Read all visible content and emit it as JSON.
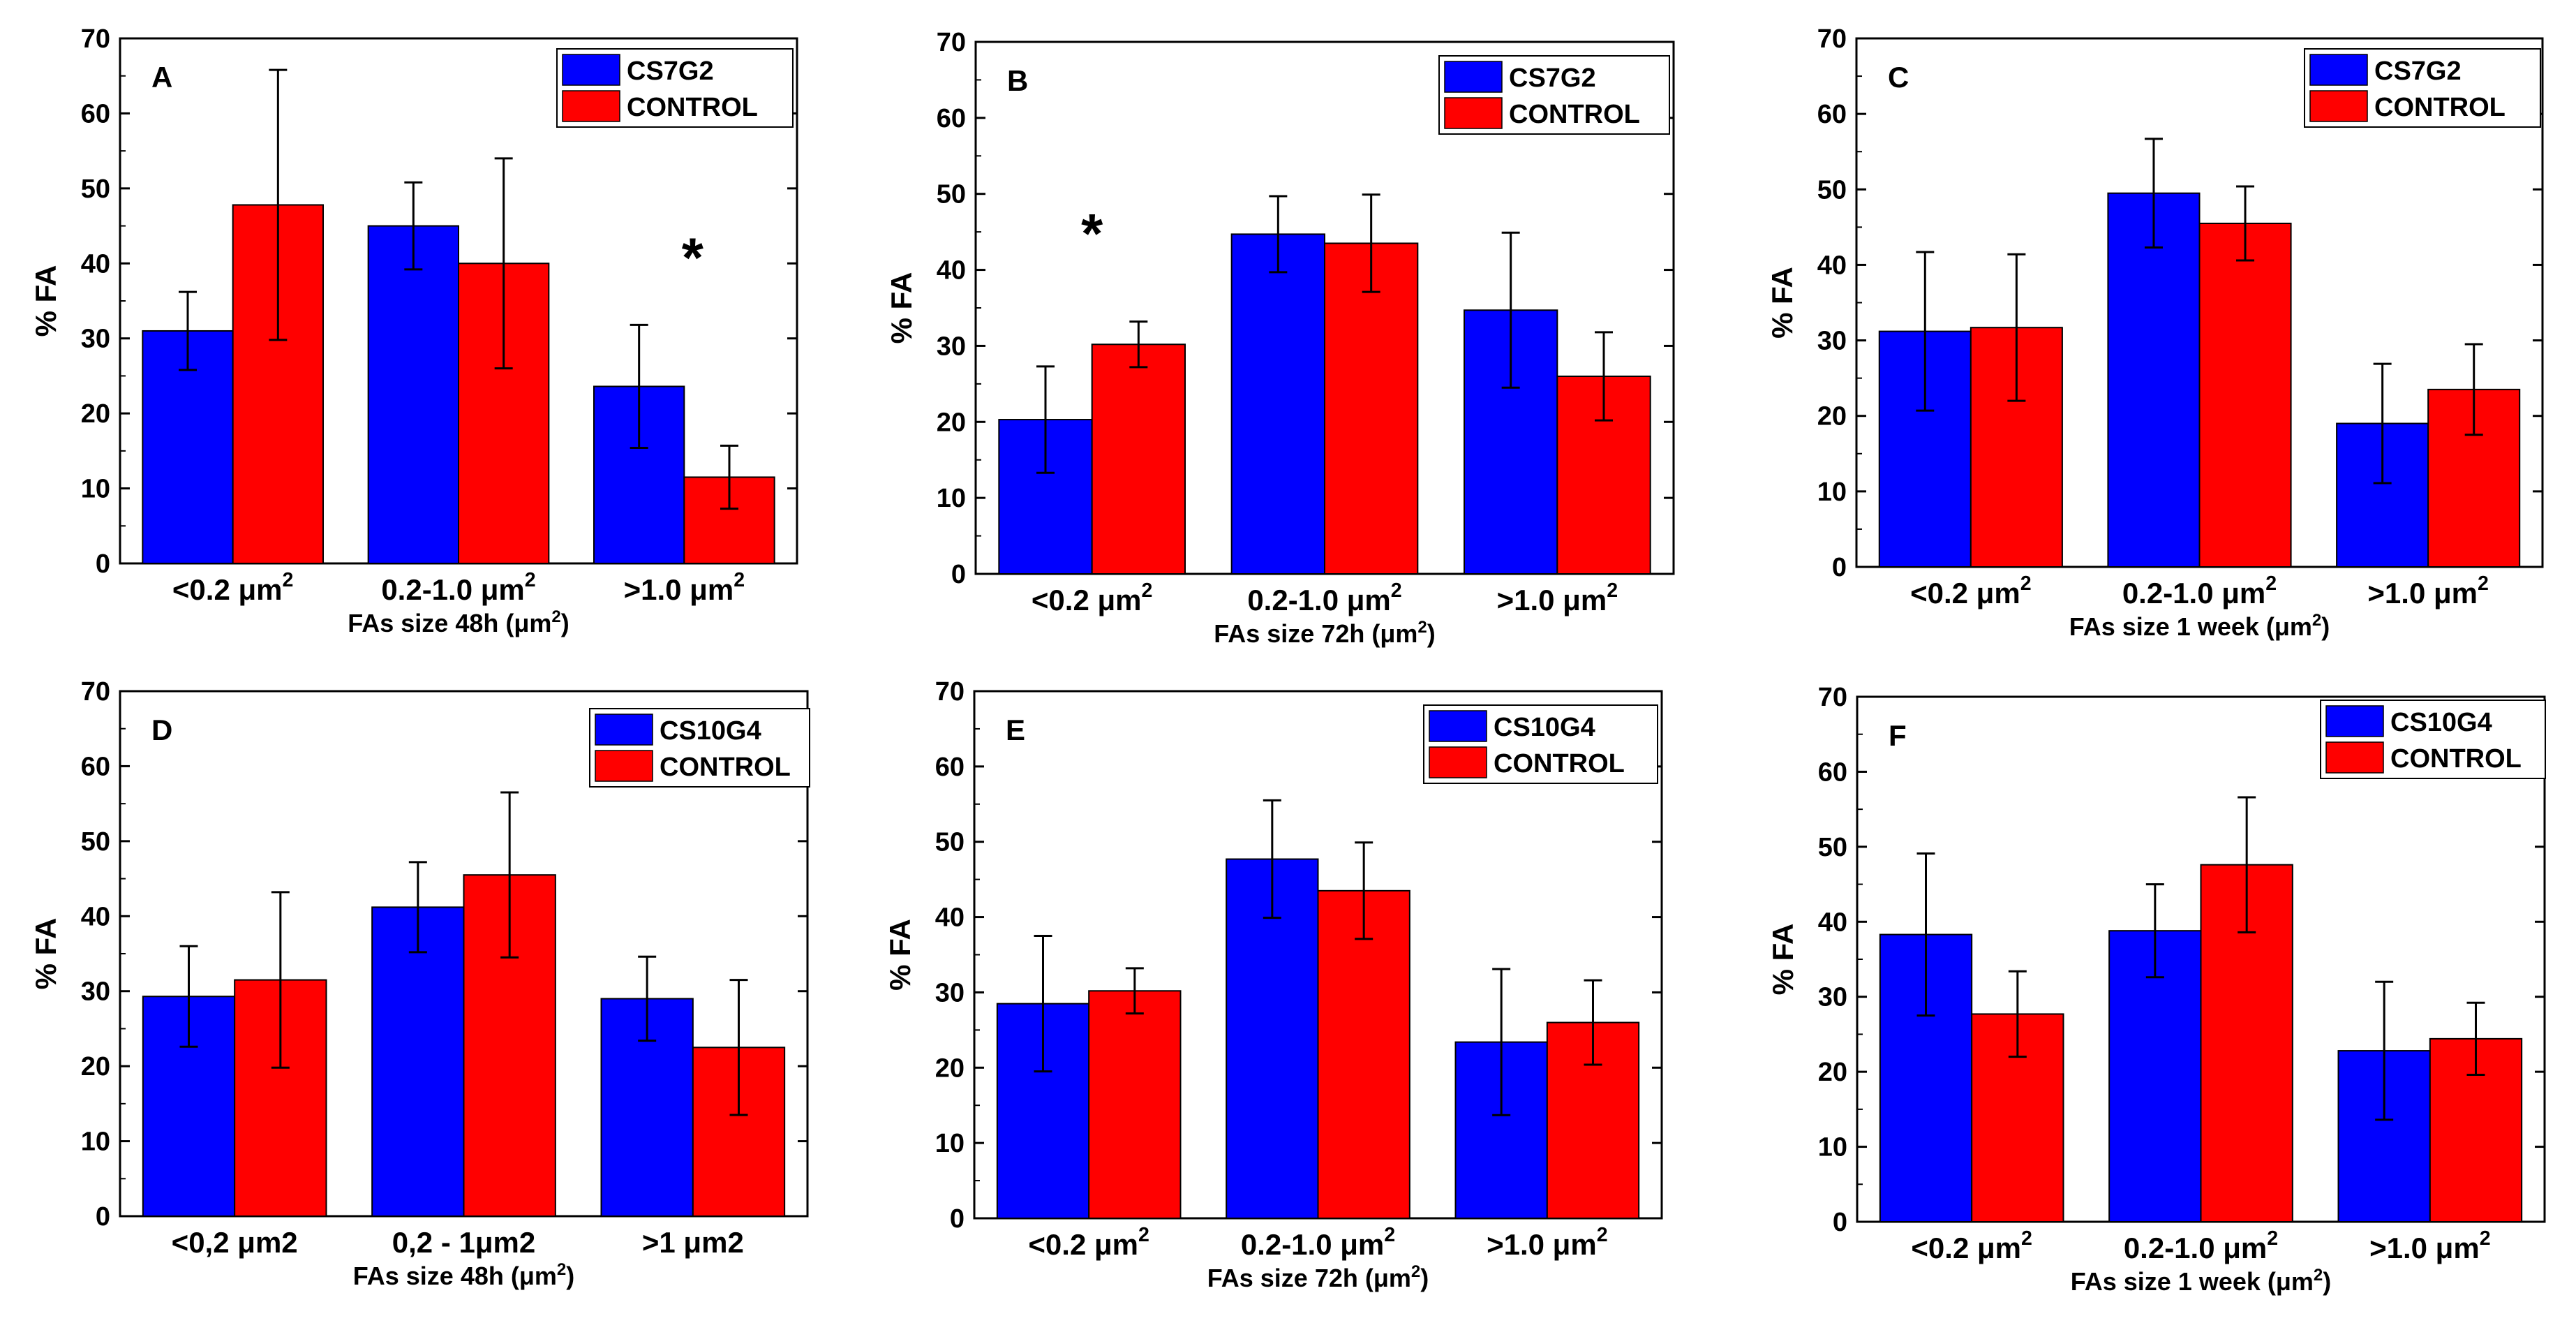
{
  "colors": {
    "series_1": "#0000FF",
    "series_2": "#FF0000",
    "axis": "#000000",
    "background": "#FFFFFF"
  },
  "chart_data": [
    {
      "type": "bar",
      "panel_label": "A",
      "ylabel": "% FA",
      "xlabel_main": "FAs size 48h (",
      "xlabel_unit": "μm",
      "xlabel_sup": "2",
      "xlabel_close": ")",
      "ylim": [
        0,
        70
      ],
      "yticks": [
        0,
        10,
        20,
        30,
        40,
        50,
        60,
        70
      ],
      "grid": false,
      "legend_position": "top-right",
      "categories": [
        {
          "label": "<0.2 μm",
          "sup": "2"
        },
        {
          "label": "0.2-1.0 μm",
          "sup": "2"
        },
        {
          "label": ">1.0 μm",
          "sup": "2"
        }
      ],
      "series": [
        {
          "name": "CS7G2",
          "values": [
            31,
            45,
            23.6
          ],
          "errors": [
            5.2,
            5.8,
            8.2
          ]
        },
        {
          "name": "CONTROL",
          "values": [
            47.8,
            40,
            11.5
          ],
          "errors": [
            18,
            14,
            4.2
          ]
        }
      ],
      "annotations": [
        {
          "text": "*",
          "category_index": 2,
          "value": 41
        }
      ]
    },
    {
      "type": "bar",
      "panel_label": "B",
      "ylabel": "% FA",
      "xlabel_main": "FAs size 72h (",
      "xlabel_unit": "μm",
      "xlabel_sup": "2",
      "xlabel_close": ")",
      "ylim": [
        0,
        70
      ],
      "yticks": [
        0,
        10,
        20,
        30,
        40,
        50,
        60,
        70
      ],
      "grid": false,
      "legend_position": "top-right",
      "categories": [
        {
          "label": "<0.2 μm",
          "sup": "2"
        },
        {
          "label": "0.2-1.0 μm",
          "sup": "2"
        },
        {
          "label": ">1.0 μm",
          "sup": "2"
        }
      ],
      "series": [
        {
          "name": "CS7G2",
          "values": [
            20.3,
            44.7,
            34.7
          ],
          "errors": [
            7,
            5,
            10.2
          ]
        },
        {
          "name": "CONTROL",
          "values": [
            30.2,
            43.5,
            26
          ],
          "errors": [
            3,
            6.4,
            5.8
          ]
        }
      ],
      "annotations": [
        {
          "text": "*",
          "category_index": 0,
          "value": 45
        }
      ]
    },
    {
      "type": "bar",
      "panel_label": "C",
      "ylabel": "% FA",
      "xlabel_main": "FAs size 1 week (",
      "xlabel_unit": "μm",
      "xlabel_sup": "2",
      "xlabel_close": ")",
      "ylim": [
        0,
        70
      ],
      "yticks": [
        0,
        10,
        20,
        30,
        40,
        50,
        60,
        70
      ],
      "grid": false,
      "legend_position": "top-right",
      "categories": [
        {
          "label": "<0.2 μm",
          "sup": "2"
        },
        {
          "label": "0.2-1.0 μm",
          "sup": "2"
        },
        {
          "label": ">1.0 μm",
          "sup": "2"
        }
      ],
      "series": [
        {
          "name": "CS7G2",
          "values": [
            31.2,
            49.5,
            19
          ],
          "errors": [
            10.5,
            7.2,
            7.9
          ]
        },
        {
          "name": "CONTROL",
          "values": [
            31.7,
            45.5,
            23.5
          ],
          "errors": [
            9.7,
            4.9,
            6
          ]
        }
      ],
      "annotations": []
    },
    {
      "type": "bar",
      "panel_label": "D",
      "ylabel": "% FA",
      "xlabel_main": "FAs size 48h (",
      "xlabel_unit": "μm",
      "xlabel_sup": "2",
      "xlabel_close": ")",
      "ylim": [
        0,
        70
      ],
      "yticks": [
        0,
        10,
        20,
        30,
        40,
        50,
        60,
        70
      ],
      "grid": false,
      "legend_position": "top-right",
      "categories": [
        {
          "label": "<0,2 μm2",
          "sup": ""
        },
        {
          "label": "0,2 - 1μm2",
          "sup": ""
        },
        {
          "label": ">1 μm2",
          "sup": ""
        }
      ],
      "series": [
        {
          "name": "CS10G4",
          "values": [
            29.3,
            41.2,
            29
          ],
          "errors": [
            6.7,
            6,
            5.6
          ]
        },
        {
          "name": "CONTROL",
          "values": [
            31.5,
            45.5,
            22.5
          ],
          "errors": [
            11.7,
            11,
            9
          ]
        }
      ],
      "annotations": []
    },
    {
      "type": "bar",
      "panel_label": "E",
      "ylabel": "% FA",
      "xlabel_main": "FAs size 72h (",
      "xlabel_unit": "μm",
      "xlabel_sup": "2",
      "xlabel_close": ")",
      "ylim": [
        0,
        70
      ],
      "yticks": [
        0,
        10,
        20,
        30,
        40,
        50,
        60,
        70
      ],
      "grid": false,
      "legend_position": "top-right",
      "categories": [
        {
          "label": "<0.2 μm",
          "sup": "2"
        },
        {
          "label": "0.2-1.0 μm",
          "sup": "2"
        },
        {
          "label": ">1.0 μm",
          "sup": "2"
        }
      ],
      "series": [
        {
          "name": "CS10G4",
          "values": [
            28.5,
            47.7,
            23.4
          ],
          "errors": [
            9,
            7.8,
            9.7
          ]
        },
        {
          "name": "CONTROL",
          "values": [
            30.2,
            43.5,
            26
          ],
          "errors": [
            3,
            6.4,
            5.6
          ]
        }
      ],
      "annotations": []
    },
    {
      "type": "bar",
      "panel_label": "F",
      "ylabel": "% FA",
      "xlabel_main": "FAs size 1 week (",
      "xlabel_unit": "μm",
      "xlabel_sup": "2",
      "xlabel_close": ")",
      "ylim": [
        0,
        70
      ],
      "yticks": [
        0,
        10,
        20,
        30,
        40,
        50,
        60,
        70
      ],
      "grid": false,
      "legend_position": "top-right",
      "categories": [
        {
          "label": "<0.2 μm",
          "sup": "2"
        },
        {
          "label": "0.2-1.0 μm",
          "sup": "2"
        },
        {
          "label": ">1.0 μm",
          "sup": "2"
        }
      ],
      "series": [
        {
          "name": "CS10G4",
          "values": [
            38.3,
            38.8,
            22.8
          ],
          "errors": [
            10.8,
            6.2,
            9.2
          ]
        },
        {
          "name": "CONTROL",
          "values": [
            27.7,
            47.6,
            24.4
          ],
          "errors": [
            5.7,
            9,
            4.8
          ]
        }
      ],
      "annotations": []
    }
  ]
}
